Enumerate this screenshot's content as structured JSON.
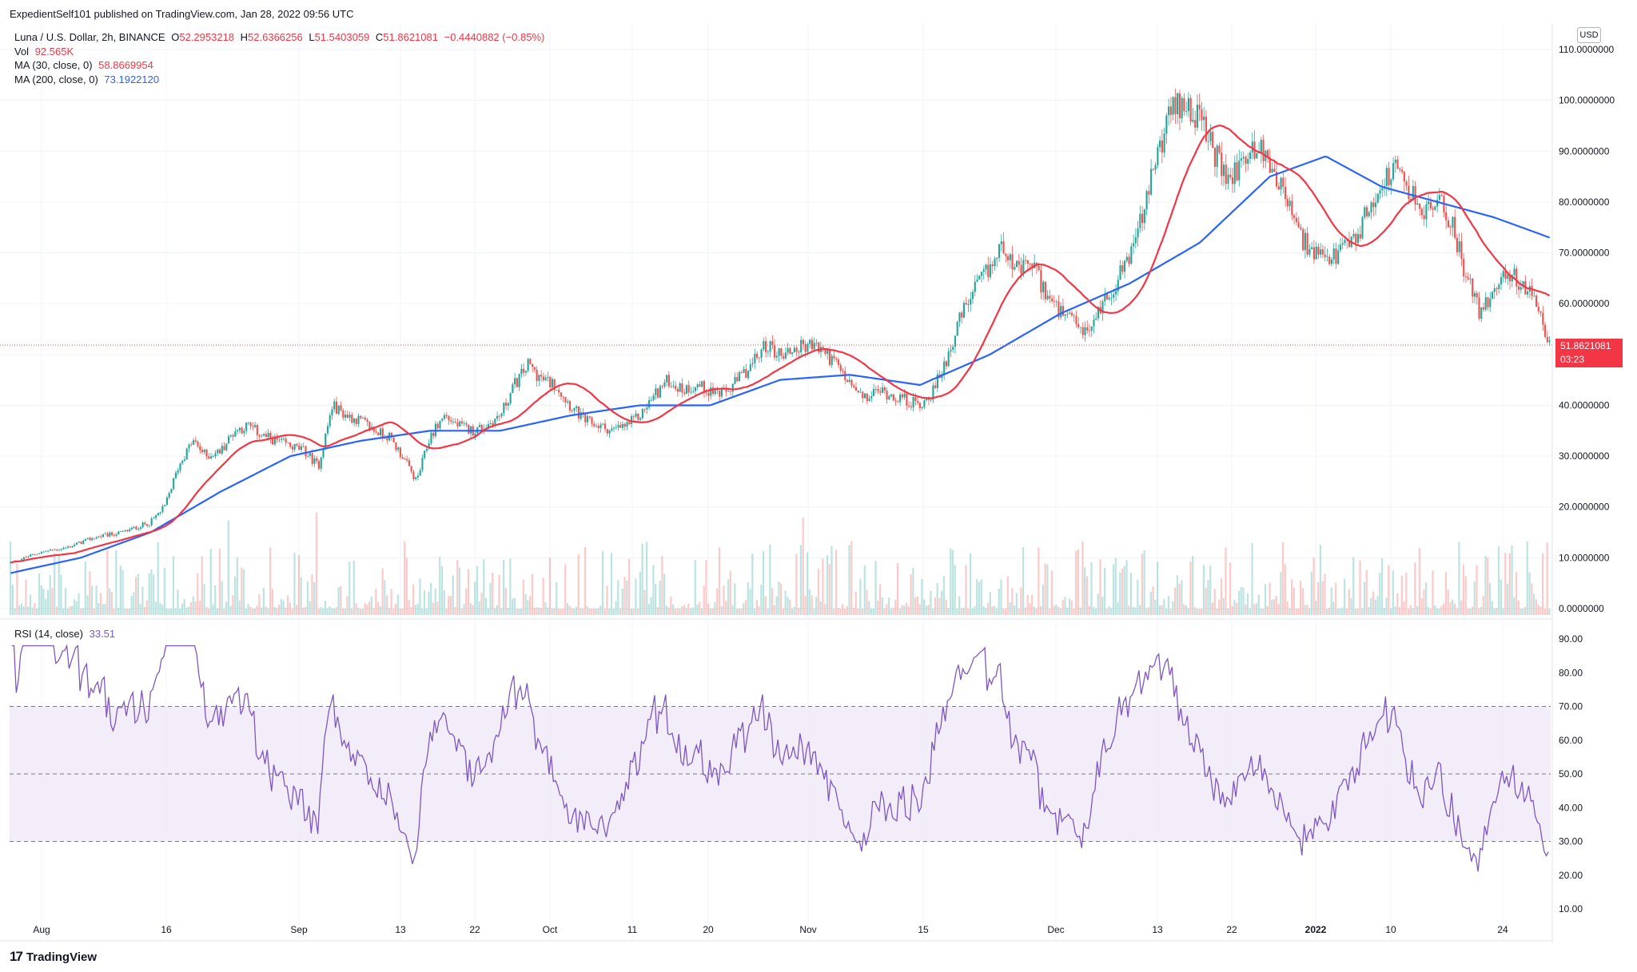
{
  "publisher": "ExpedientSelf101 published on TradingView.com, Jan 28, 2022 09:56 UTC",
  "legend": {
    "symbol": "Luna / U.S. Dollar, 2h, BINANCE",
    "o_label": "O",
    "o_value": "52.2953218",
    "h_label": "H",
    "h_value": "52.6366256",
    "l_label": "L",
    "l_value": "51.5403059",
    "c_label": "C",
    "c_value": "51.8621081",
    "change": "−0.4440882 (−0.85%)",
    "vol_label": "Vol",
    "vol_value": "92.565K",
    "ma30_label": "MA (30, close, 0)",
    "ma30_value": "58.8669954",
    "ma200_label": "MA (200, close, 0)",
    "ma200_value": "73.1922120",
    "rsi_label": "RSI (14, close)",
    "rsi_value": "33.51"
  },
  "currency": "USD",
  "last_price": {
    "value": "51.8621081",
    "countdown": "03:23"
  },
  "brand": "TradingView",
  "colors": {
    "up": "#26a69a",
    "down": "#ef5350",
    "ma30": "#f23645",
    "ma200": "#2962ff",
    "rsi": "#7e57c2",
    "rsi_band": "#ede7f6"
  },
  "chart_data": {
    "type": "candlestick",
    "x_ticks": [
      "Aug",
      "16",
      "Sep",
      "13",
      "22",
      "Oct",
      "11",
      "20",
      "Nov",
      "15",
      "Dec",
      "13",
      "22",
      "2022",
      "10",
      "24"
    ],
    "price_ticks": [
      "0.0000000",
      "10.0000000",
      "20.0000000",
      "30.0000000",
      "40.0000000",
      "50.0000000",
      "60.0000000",
      "70.0000000",
      "80.0000000",
      "90.0000000",
      "100.0000000",
      "110.0000000"
    ],
    "price_range": [
      0,
      110
    ],
    "rsi_ticks": [
      "10.00",
      "20.00",
      "30.00",
      "40.00",
      "50.00",
      "60.00",
      "70.00",
      "80.00",
      "90.00"
    ],
    "rsi_range": [
      10,
      90
    ],
    "rsi_band": [
      30,
      70
    ],
    "price_path": [
      [
        0,
        9
      ],
      [
        2,
        11
      ],
      [
        4,
        12
      ],
      [
        6,
        14
      ],
      [
        8,
        15
      ],
      [
        10,
        17
      ],
      [
        11,
        20
      ],
      [
        12,
        28
      ],
      [
        13,
        33
      ],
      [
        14,
        30
      ],
      [
        15,
        31
      ],
      [
        16,
        35
      ],
      [
        17,
        36
      ],
      [
        18,
        34
      ],
      [
        19,
        33
      ],
      [
        20,
        32
      ],
      [
        21,
        31
      ],
      [
        22,
        28
      ],
      [
        23,
        40
      ],
      [
        24,
        38
      ],
      [
        25,
        37
      ],
      [
        26,
        35
      ],
      [
        27,
        34
      ],
      [
        28,
        30
      ],
      [
        29,
        25
      ],
      [
        30,
        34
      ],
      [
        31,
        38
      ],
      [
        32,
        36
      ],
      [
        33,
        35
      ],
      [
        34,
        36
      ],
      [
        35,
        38
      ],
      [
        36,
        44
      ],
      [
        37,
        48
      ],
      [
        38,
        45
      ],
      [
        39,
        44
      ],
      [
        40,
        40
      ],
      [
        41,
        37
      ],
      [
        42,
        36
      ],
      [
        43,
        35
      ],
      [
        44,
        36
      ],
      [
        45,
        38
      ],
      [
        46,
        42
      ],
      [
        47,
        45
      ],
      [
        48,
        43
      ],
      [
        49,
        44
      ],
      [
        50,
        43
      ],
      [
        51,
        42
      ],
      [
        52,
        45
      ],
      [
        53,
        48
      ],
      [
        54,
        52
      ],
      [
        55,
        50
      ],
      [
        56,
        51
      ],
      [
        57,
        52
      ],
      [
        58,
        51
      ],
      [
        59,
        48
      ],
      [
        60,
        44
      ],
      [
        61,
        41
      ],
      [
        62,
        43
      ],
      [
        63,
        42
      ],
      [
        64,
        41
      ],
      [
        65,
        40
      ],
      [
        66,
        43
      ],
      [
        67,
        50
      ],
      [
        68,
        58
      ],
      [
        69,
        63
      ],
      [
        70,
        67
      ],
      [
        71,
        72
      ],
      [
        72,
        66
      ],
      [
        73,
        68
      ],
      [
        74,
        62
      ],
      [
        75,
        58
      ],
      [
        76,
        56
      ],
      [
        77,
        54
      ],
      [
        78,
        60
      ],
      [
        79,
        64
      ],
      [
        80,
        70
      ],
      [
        81,
        78
      ],
      [
        82,
        90
      ],
      [
        83,
        98
      ],
      [
        84,
        100
      ],
      [
        85,
        96
      ],
      [
        86,
        90
      ],
      [
        87,
        84
      ],
      [
        88,
        88
      ],
      [
        89,
        91
      ],
      [
        90,
        88
      ],
      [
        91,
        82
      ],
      [
        92,
        74
      ],
      [
        93,
        70
      ],
      [
        94,
        68
      ],
      [
        95,
        70
      ],
      [
        96,
        72
      ],
      [
        97,
        78
      ],
      [
        98,
        84
      ],
      [
        99,
        86
      ],
      [
        100,
        82
      ],
      [
        101,
        78
      ],
      [
        102,
        80
      ],
      [
        103,
        76
      ],
      [
        104,
        66
      ],
      [
        105,
        58
      ],
      [
        106,
        63
      ],
      [
        107,
        66
      ],
      [
        108,
        64
      ],
      [
        109,
        60
      ],
      [
        110,
        52
      ]
    ],
    "x_max": 110,
    "ma200_path": [
      [
        0,
        7
      ],
      [
        5,
        10
      ],
      [
        10,
        15
      ],
      [
        15,
        23
      ],
      [
        20,
        30
      ],
      [
        25,
        33
      ],
      [
        30,
        35
      ],
      [
        35,
        35
      ],
      [
        40,
        38
      ],
      [
        45,
        40
      ],
      [
        50,
        40
      ],
      [
        55,
        45
      ],
      [
        60,
        46
      ],
      [
        65,
        44
      ],
      [
        70,
        50
      ],
      [
        75,
        58
      ],
      [
        80,
        64
      ],
      [
        85,
        72
      ],
      [
        90,
        85
      ],
      [
        94,
        89
      ],
      [
        98,
        83
      ],
      [
        102,
        80
      ],
      [
        106,
        77
      ],
      [
        110,
        73
      ]
    ]
  }
}
